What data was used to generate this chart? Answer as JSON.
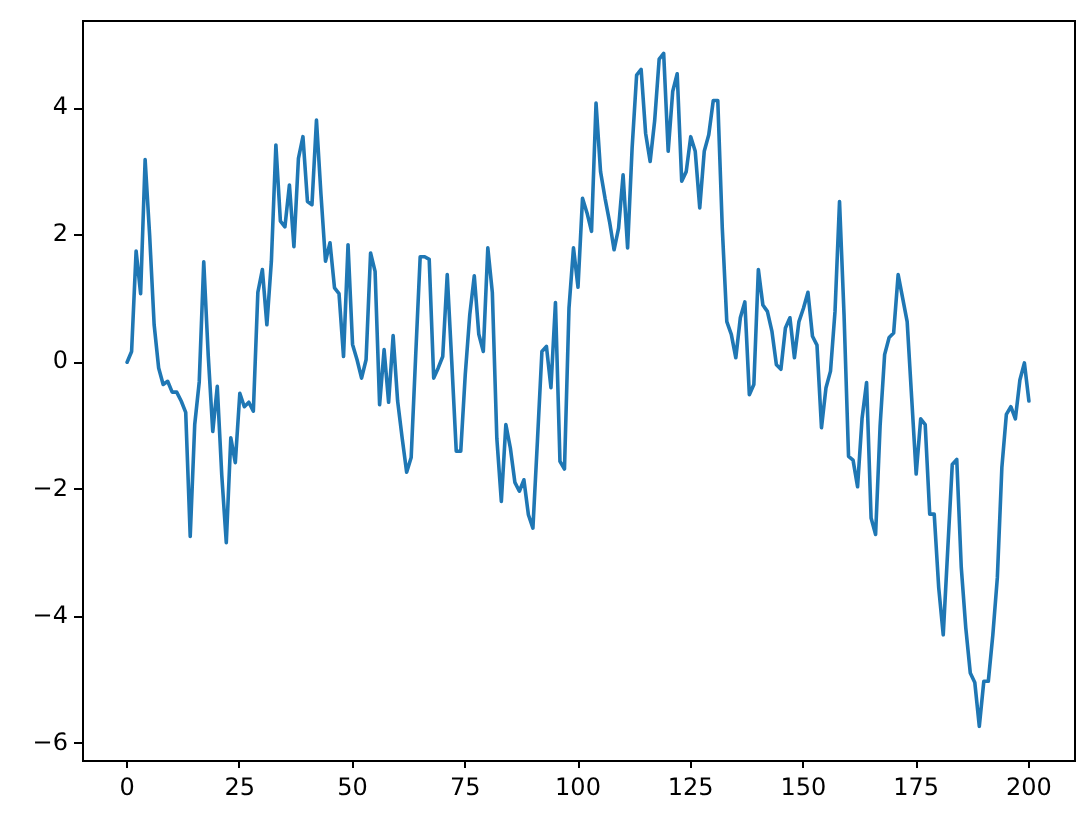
{
  "chart_data": {
    "type": "line",
    "color": "#1f77b4",
    "legend": false,
    "marker": "none",
    "line_style": "solid",
    "x": [
      0,
      1,
      2,
      3,
      4,
      5,
      6,
      7,
      8,
      9,
      10,
      11,
      12,
      13,
      14,
      15,
      16,
      17,
      18,
      19,
      20,
      21,
      22,
      23,
      24,
      25,
      26,
      27,
      28,
      29,
      30,
      31,
      32,
      33,
      34,
      35,
      36,
      37,
      38,
      39,
      40,
      41,
      42,
      43,
      44,
      45,
      46,
      47,
      48,
      49,
      50,
      51,
      52,
      53,
      54,
      55,
      56,
      57,
      58,
      59,
      60,
      61,
      62,
      63,
      64,
      65,
      66,
      67,
      68,
      69,
      70,
      71,
      72,
      73,
      74,
      75,
      76,
      77,
      78,
      79,
      80,
      81,
      82,
      83,
      84,
      85,
      86,
      87,
      88,
      89,
      90,
      91,
      92,
      93,
      94,
      95,
      96,
      97,
      98,
      99,
      100,
      101,
      102,
      103,
      104,
      105,
      106,
      107,
      108,
      109,
      110,
      111,
      112,
      113,
      114,
      115,
      116,
      117,
      118,
      119,
      120,
      121,
      122,
      123,
      124,
      125,
      126,
      127,
      128,
      129,
      130,
      131,
      132,
      133,
      134,
      135,
      136,
      137,
      138,
      139,
      140,
      141,
      142,
      143,
      144,
      145,
      146,
      147,
      148,
      149,
      150,
      151,
      152,
      153,
      154,
      155,
      156,
      157,
      158,
      159,
      160,
      161,
      162,
      163,
      164,
      165,
      166,
      167,
      168,
      169,
      170,
      171,
      172,
      173,
      174,
      175,
      176,
      177,
      178,
      179,
      180,
      181,
      182,
      183,
      184,
      185,
      186,
      187,
      188,
      189,
      190,
      191,
      192,
      193,
      194,
      195,
      196,
      197,
      198,
      199,
      200
    ],
    "values": [
      0.0,
      0.17,
      1.75,
      1.08,
      3.19,
      2.0,
      0.59,
      -0.09,
      -0.35,
      -0.3,
      -0.47,
      -0.47,
      -0.61,
      -0.79,
      -2.74,
      -0.98,
      -0.31,
      1.58,
      0.1,
      -1.09,
      -0.38,
      -1.78,
      -2.84,
      -1.19,
      -1.58,
      -0.49,
      -0.7,
      -0.63,
      -0.77,
      1.1,
      1.46,
      0.59,
      1.59,
      3.42,
      2.22,
      2.13,
      2.79,
      1.82,
      3.21,
      3.55,
      2.53,
      2.48,
      3.81,
      2.64,
      1.59,
      1.88,
      1.17,
      1.08,
      0.09,
      1.85,
      0.28,
      0.04,
      -0.25,
      0.04,
      1.72,
      1.43,
      -0.67,
      0.2,
      -0.63,
      0.42,
      -0.61,
      -1.19,
      -1.73,
      -1.5,
      0.1,
      1.66,
      1.66,
      1.62,
      -0.25,
      -0.09,
      0.09,
      1.38,
      0.01,
      -1.4,
      -1.4,
      -0.19,
      0.75,
      1.36,
      0.44,
      0.17,
      1.8,
      1.1,
      -1.2,
      -2.19,
      -0.98,
      -1.35,
      -1.89,
      -2.03,
      -1.85,
      -2.4,
      -2.61,
      -1.24,
      0.17,
      0.25,
      -0.4,
      0.94,
      -1.56,
      -1.68,
      0.85,
      1.8,
      1.18,
      2.58,
      2.35,
      2.06,
      4.08,
      3.0,
      2.58,
      2.21,
      1.77,
      2.11,
      2.95,
      1.8,
      3.37,
      4.52,
      4.61,
      3.6,
      3.16,
      3.8,
      4.77,
      4.86,
      3.32,
      4.26,
      4.54,
      2.85,
      3.0,
      3.55,
      3.32,
      2.43,
      3.32,
      3.58,
      4.12,
      4.12,
      2.11,
      0.64,
      0.44,
      0.07,
      0.7,
      0.95,
      -0.51,
      -0.35,
      1.46,
      0.9,
      0.8,
      0.49,
      -0.04,
      -0.11,
      0.54,
      0.7,
      0.07,
      0.64,
      0.85,
      1.1,
      0.41,
      0.27,
      -1.03,
      -0.4,
      -0.14,
      0.8,
      2.53,
      0.75,
      -1.48,
      -1.54,
      -1.96,
      -0.88,
      -0.32,
      -2.45,
      -2.71,
      -1.0,
      0.12,
      0.39,
      0.46,
      1.38,
      1.01,
      0.64,
      -0.56,
      -1.76,
      -0.89,
      -0.98,
      -2.39,
      -2.39,
      -3.55,
      -4.29,
      -2.95,
      -1.61,
      -1.53,
      -3.23,
      -4.18,
      -4.89,
      -5.04,
      -5.73,
      -5.02,
      -5.02,
      -4.29,
      -3.39,
      -1.66,
      -0.82,
      -0.7,
      -0.89,
      -0.28,
      -0.01,
      -0.61
    ],
    "xlim": [
      -10,
      210
    ],
    "xticks": [
      0,
      25,
      50,
      75,
      100,
      125,
      150,
      175,
      200
    ],
    "ylim": [
      -6.26,
      5.38
    ],
    "yticks": [
      {
        "value": -6,
        "label": "−6"
      },
      {
        "value": -4,
        "label": "−4"
      },
      {
        "value": -2,
        "label": "−2"
      },
      0,
      2,
      4
    ]
  }
}
